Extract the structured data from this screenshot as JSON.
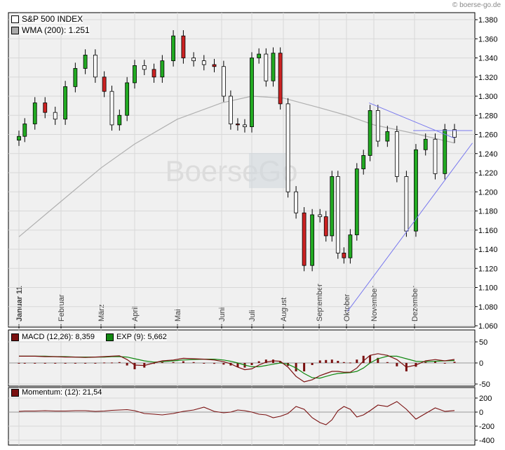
{
  "copyright": "© boerse-go.de",
  "watermark": "BoerseGo",
  "colors": {
    "up": "#22aa22",
    "down": "#ffffff",
    "down_accent": "#cc2222",
    "wma": "#b0b0b0",
    "trend": "#7777ee",
    "macd": "#7a1010",
    "signal": "#118811",
    "momentum": "#7a1010",
    "grid": "#d8d8d8",
    "panel_bg": "#f0f0f0"
  },
  "chart_data": [
    {
      "type": "candlestick",
      "legend": [
        {
          "label": "S&P 500 INDEX",
          "swatch": "#ffffff"
        },
        {
          "label": "WMA (200): 1.251",
          "swatch": "#aaaaaa"
        }
      ],
      "y_ticks": [
        "1.380",
        "1.360",
        "1.340",
        "1.320",
        "1.300",
        "1.280",
        "1.260",
        "1.240",
        "1.220",
        "1.200",
        "1.180",
        "1.160",
        "1.140",
        "1.120",
        "1.100",
        "1.080",
        "1.060"
      ],
      "ylim": [
        1.06,
        1.38
      ],
      "x_ticks": [
        {
          "date": "2011-01-03",
          "label": "Januar 11",
          "bold": true
        },
        {
          "date": "2011-02-01",
          "label": "Februar"
        },
        {
          "date": "2011-03-01",
          "label": "März"
        },
        {
          "date": "2011-04-01",
          "label": "April"
        },
        {
          "date": "2011-05-02",
          "label": "Mai"
        },
        {
          "date": "2011-06-01",
          "label": "Juni"
        },
        {
          "date": "2011-07-01",
          "label": "Juli"
        },
        {
          "date": "2011-08-01",
          "label": "August"
        },
        {
          "date": "2011-09-01",
          "label": "September"
        },
        {
          "date": "2011-10-03",
          "label": "Oktober"
        },
        {
          "date": "2011-11-01",
          "label": "November"
        },
        {
          "date": "2011-12-01",
          "label": "Dezember"
        }
      ],
      "closes": [
        [
          "2011-01-03",
          1.258
        ],
        [
          "2011-01-07",
          1.271
        ],
        [
          "2011-01-14",
          1.293
        ],
        [
          "2011-01-21",
          1.283
        ],
        [
          "2011-01-28",
          1.276
        ],
        [
          "2011-02-04",
          1.31
        ],
        [
          "2011-02-11",
          1.329
        ],
        [
          "2011-02-18",
          1.343
        ],
        [
          "2011-02-25",
          1.32
        ],
        [
          "2011-03-04",
          1.305
        ],
        [
          "2011-03-11",
          1.27
        ],
        [
          "2011-03-18",
          1.28
        ],
        [
          "2011-03-25",
          1.314
        ],
        [
          "2011-04-01",
          1.332
        ],
        [
          "2011-04-08",
          1.328
        ],
        [
          "2011-04-15",
          1.32
        ],
        [
          "2011-04-21",
          1.337
        ],
        [
          "2011-04-29",
          1.363
        ],
        [
          "2011-05-06",
          1.34
        ],
        [
          "2011-05-13",
          1.337
        ],
        [
          "2011-05-20",
          1.333
        ],
        [
          "2011-05-27",
          1.331
        ],
        [
          "2011-06-03",
          1.3
        ],
        [
          "2011-06-10",
          1.271
        ],
        [
          "2011-06-17",
          1.27
        ],
        [
          "2011-06-24",
          1.268
        ],
        [
          "2011-07-01",
          1.34
        ],
        [
          "2011-07-08",
          1.344
        ],
        [
          "2011-07-15",
          1.316
        ],
        [
          "2011-07-22",
          1.345
        ],
        [
          "2011-07-29",
          1.292
        ],
        [
          "2011-08-05",
          1.2
        ],
        [
          "2011-08-12",
          1.178
        ],
        [
          "2011-08-19",
          1.123
        ],
        [
          "2011-08-26",
          1.176
        ],
        [
          "2011-09-02",
          1.174
        ],
        [
          "2011-09-09",
          1.154
        ],
        [
          "2011-09-16",
          1.216
        ],
        [
          "2011-09-23",
          1.136
        ],
        [
          "2011-09-30",
          1.131
        ],
        [
          "2011-10-07",
          1.155
        ],
        [
          "2011-10-14",
          1.224
        ],
        [
          "2011-10-21",
          1.238
        ],
        [
          "2011-10-28",
          1.285
        ],
        [
          "2011-11-04",
          1.253
        ],
        [
          "2011-11-11",
          1.263
        ],
        [
          "2011-11-18",
          1.216
        ],
        [
          "2011-11-25",
          1.159
        ],
        [
          "2011-12-02",
          1.244
        ],
        [
          "2011-12-09",
          1.255
        ],
        [
          "2011-12-16",
          1.219
        ],
        [
          "2011-12-23",
          1.265
        ],
        [
          "2011-12-30",
          1.257
        ]
      ],
      "wma": [
        [
          "2011-01-03",
          1.153
        ],
        [
          "2011-02-01",
          1.19
        ],
        [
          "2011-03-01",
          1.225
        ],
        [
          "2011-04-01",
          1.25
        ],
        [
          "2011-05-02",
          1.276
        ],
        [
          "2011-06-01",
          1.293
        ],
        [
          "2011-07-01",
          1.3
        ],
        [
          "2011-08-01",
          1.298
        ],
        [
          "2011-09-01",
          1.288
        ],
        [
          "2011-10-03",
          1.28
        ],
        [
          "2011-11-01",
          1.27
        ],
        [
          "2011-12-01",
          1.261
        ],
        [
          "2011-12-30",
          1.251
        ]
      ],
      "trendlines": [
        [
          [
            "2011-10-04",
            1.075
          ],
          [
            "2012-01-12",
            1.251
          ]
        ],
        [
          [
            "2011-10-27",
            1.293
          ],
          [
            "2011-12-30",
            1.256
          ]
        ],
        [
          [
            "2011-11-30",
            1.264
          ],
          [
            "2012-01-12",
            1.264
          ]
        ]
      ]
    },
    {
      "type": "line+bar",
      "legend": [
        {
          "label": "MACD (12,26): 8,359",
          "swatch": "#7a1010"
        },
        {
          "label": "EXP (9): 5,662",
          "swatch": "#118811"
        }
      ],
      "y_ticks": [
        50,
        0,
        -50
      ],
      "ylim": [
        -58,
        62
      ],
      "macd": [
        16,
        16,
        16,
        15,
        15,
        14,
        14,
        13,
        14,
        15,
        16,
        17,
        8,
        -5,
        -6,
        0,
        5,
        7,
        11,
        10,
        9,
        7,
        3,
        -2,
        -10,
        -16,
        -14,
        -5,
        2,
        5,
        4,
        -10,
        -32,
        -45,
        -40,
        -30,
        -25,
        -20,
        -20,
        -22,
        -22,
        -12,
        5,
        18,
        22,
        18,
        8,
        -10,
        -5,
        5,
        8,
        5,
        8.359
      ],
      "signal": [
        16,
        16,
        16,
        16,
        15,
        15,
        14,
        14,
        14,
        14,
        15,
        15,
        14,
        10,
        5,
        2,
        3,
        5,
        7,
        8,
        9,
        9,
        7,
        4,
        0,
        -5,
        -9,
        -9,
        -6,
        -3,
        0,
        -3,
        -12,
        -25,
        -35,
        -36,
        -32,
        -28,
        -25,
        -24,
        -23,
        -20,
        -12,
        0,
        10,
        16,
        16,
        10,
        4,
        3,
        4,
        5,
        5.662
      ]
    },
    {
      "type": "line",
      "legend": [
        {
          "label": "Momentum: (12): 21,54",
          "swatch": "#7a1010"
        }
      ],
      "y_ticks": [
        200,
        0,
        -200,
        -400
      ],
      "ylim": [
        -460,
        350
      ],
      "values": [
        10,
        15,
        15,
        20,
        15,
        15,
        20,
        20,
        10,
        15,
        25,
        30,
        35,
        20,
        -20,
        -30,
        -40,
        -20,
        10,
        30,
        70,
        10,
        -10,
        0,
        30,
        20,
        0,
        -30,
        -40,
        -80,
        -60,
        -20,
        80,
        40,
        -80,
        -150,
        -180,
        -110,
        20,
        80,
        40,
        -70,
        -40,
        20,
        100,
        80,
        150,
        40,
        -100,
        -20,
        60,
        10,
        21.54
      ]
    }
  ]
}
